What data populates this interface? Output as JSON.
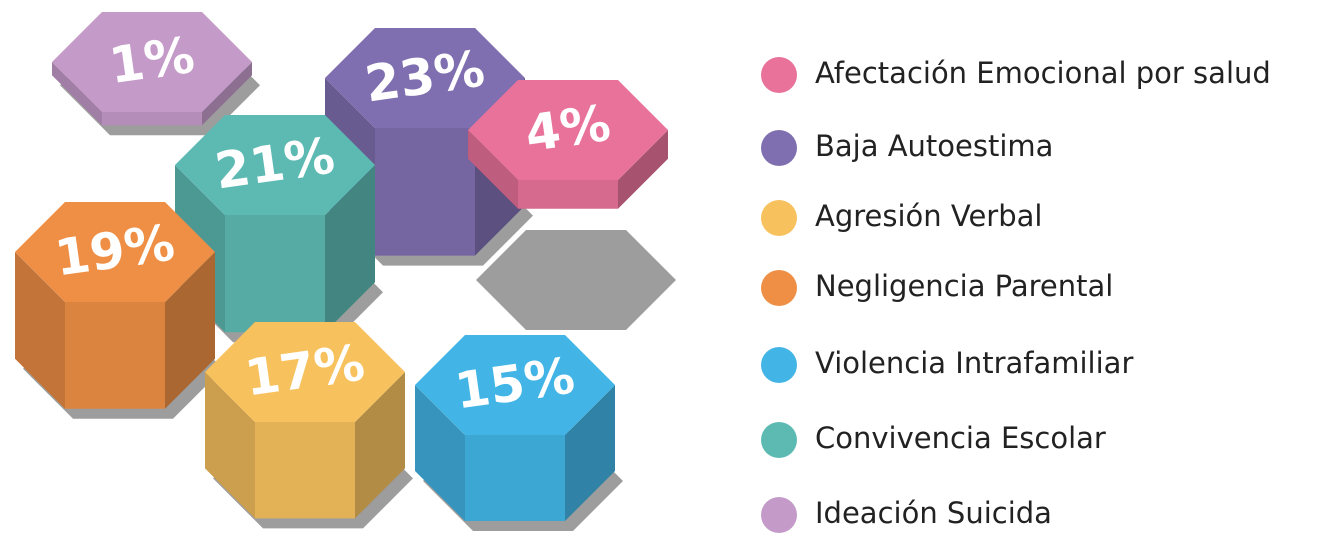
{
  "chart_data": {
    "type": "hexagon",
    "categories": [
      "Afectación Emocional por salud",
      "Baja Autoestima",
      "Agresión Verbal",
      "Negligencia Parental",
      "Violencia Intrafamiliar",
      "Convivencia Escolar",
      "Ideación Suicida"
    ],
    "values": [
      4,
      23,
      17,
      19,
      15,
      21,
      1
    ],
    "value_labels": [
      "4%",
      "23%",
      "17%",
      "19%",
      "15%",
      "21%",
      "1%"
    ],
    "colors": [
      "#e8729a",
      "#7f6fb0",
      "#f7c25e",
      "#ee8f45",
      "#42b5e6",
      "#5dbab3",
      "#c49ac9"
    ]
  }
}
